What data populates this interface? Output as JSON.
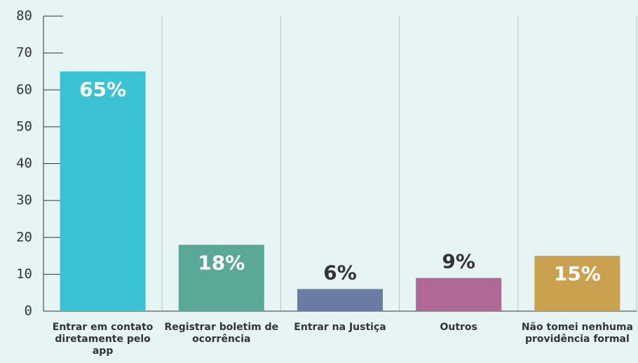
{
  "chart_data": {
    "type": "bar",
    "categories": [
      "Entrar em contato diretamente pelo app",
      "Registrar boletim de ocorrência",
      "Entrar na Justiça",
      "Outros",
      "Não tomei nenhuma providência formal"
    ],
    "values": [
      65,
      18,
      6,
      9,
      15
    ],
    "value_labels": [
      "65%",
      "18%",
      "6%",
      "9%",
      "15%"
    ],
    "colors": [
      "#3bc3d4",
      "#5aa998",
      "#6a7ca6",
      "#b06894",
      "#c9a14f"
    ],
    "ylim": [
      0,
      80
    ],
    "yticks": [
      0,
      10,
      20,
      30,
      40,
      50,
      60,
      70,
      80
    ]
  }
}
